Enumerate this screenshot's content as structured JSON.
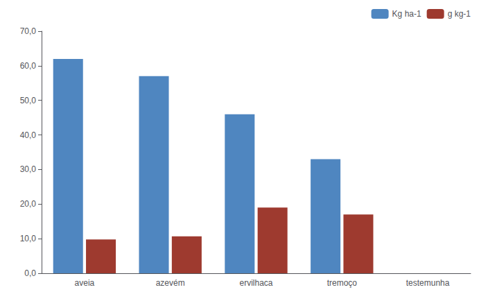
{
  "chart_data": {
    "type": "bar",
    "categories": [
      "aveia",
      "azevém",
      "ervilhaca",
      "tremoço",
      "testemunha"
    ],
    "series": [
      {
        "name": "Kg ha-1",
        "color": "#4f86c0",
        "values": [
          62.0,
          57.0,
          46.0,
          33.0,
          0.0
        ]
      },
      {
        "name": "g kg-1",
        "color": "#9e3a2f",
        "values": [
          9.8,
          10.7,
          19.0,
          17.0,
          0.0
        ]
      }
    ],
    "ylim": [
      0,
      70
    ],
    "yticks": [
      {
        "value": 0.0,
        "label": "0,0"
      },
      {
        "value": 10.0,
        "label": "10,0"
      },
      {
        "value": 20.0,
        "label": "20,0"
      },
      {
        "value": 30.0,
        "label": "30,0"
      },
      {
        "value": 40.0,
        "label": "40,0"
      },
      {
        "value": 50.0,
        "label": "50,0"
      },
      {
        "value": 60.0,
        "label": "60,0"
      },
      {
        "value": 70.0,
        "label": "70,0"
      }
    ],
    "grid": false,
    "legend": "upper right"
  }
}
